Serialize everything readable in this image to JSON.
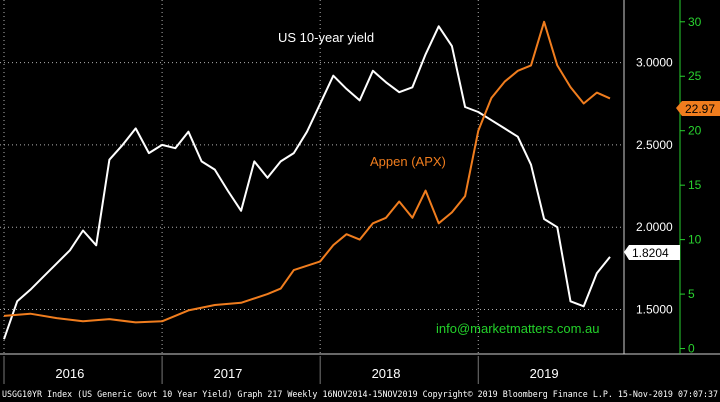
{
  "chart_data": {
    "type": "line",
    "title": "",
    "annotations": {
      "us10_label": "US 10-year yield",
      "appen_label": "Appen (APX)",
      "contact": "info@marketmatters.com.au"
    },
    "footer": "USGG10YR Index (US Generic Govt 10 Year Yield) Graph 217  Weekly 16NOV2014-15NOV2019  Copyright© 2019 Bloomberg Finance L.P.  15-Nov-2019 07:07:37",
    "x_labels": [
      "2016",
      "2017",
      "2018",
      "2019"
    ],
    "x_range": [
      "2016-01",
      "2019-11"
    ],
    "left_axis": {
      "ticks": [
        "1.5000",
        "2.0000",
        "2.5000",
        "3.0000"
      ],
      "range": [
        1.23,
        3.38
      ],
      "last_value_badge": "1.8204"
    },
    "right_axis": {
      "ticks": [
        "0",
        "5",
        "10",
        "15",
        "20",
        "25",
        "30"
      ],
      "range": [
        -0.5,
        32.0
      ],
      "last_value_badge": "22.97"
    },
    "grid": true,
    "series": [
      {
        "name": "US 10-year yield",
        "axis": "left",
        "color": "#ffffff",
        "values": [
          [
            "2016-01",
            1.32
          ],
          [
            "2016-02",
            1.55
          ],
          [
            "2016-03",
            1.62
          ],
          [
            "2016-04",
            1.7
          ],
          [
            "2016-05",
            1.78
          ],
          [
            "2016-06",
            1.86
          ],
          [
            "2016-07",
            1.98
          ],
          [
            "2016-08",
            1.89
          ],
          [
            "2016-09",
            2.41
          ],
          [
            "2016-10",
            2.5
          ],
          [
            "2016-11",
            2.6
          ],
          [
            "2016-12",
            2.45
          ],
          [
            "2017-01",
            2.5
          ],
          [
            "2017-02",
            2.48
          ],
          [
            "2017-03",
            2.58
          ],
          [
            "2017-04",
            2.4
          ],
          [
            "2017-05",
            2.35
          ],
          [
            "2017-06",
            2.22
          ],
          [
            "2017-07",
            2.1
          ],
          [
            "2017-08",
            2.4
          ],
          [
            "2017-09",
            2.3
          ],
          [
            "2017-10",
            2.4
          ],
          [
            "2017-11",
            2.45
          ],
          [
            "2017-12",
            2.58
          ],
          [
            "2018-01",
            2.75
          ],
          [
            "2018-02",
            2.92
          ],
          [
            "2018-03",
            2.84
          ],
          [
            "2018-04",
            2.77
          ],
          [
            "2018-05",
            2.95
          ],
          [
            "2018-06",
            2.88
          ],
          [
            "2018-07",
            2.82
          ],
          [
            "2018-08",
            2.85
          ],
          [
            "2018-09",
            3.05
          ],
          [
            "2018-10",
            3.22
          ],
          [
            "2018-11",
            3.1
          ],
          [
            "2018-12",
            2.73
          ],
          [
            "2019-01",
            2.7
          ],
          [
            "2019-02",
            2.65
          ],
          [
            "2019-03",
            2.6
          ],
          [
            "2019-04",
            2.55
          ],
          [
            "2019-05",
            2.38
          ],
          [
            "2019-06",
            2.05
          ],
          [
            "2019-07",
            2.0
          ],
          [
            "2019-08",
            1.55
          ],
          [
            "2019-09",
            1.52
          ],
          [
            "2019-10",
            1.72
          ],
          [
            "2019-11",
            1.82
          ]
        ]
      },
      {
        "name": "Appen (APX)",
        "axis": "right",
        "color": "#f07d1e",
        "values": [
          [
            "2016-01",
            3.0
          ],
          [
            "2016-03",
            3.2
          ],
          [
            "2016-05",
            2.8
          ],
          [
            "2016-07",
            2.5
          ],
          [
            "2016-09",
            2.7
          ],
          [
            "2016-11",
            2.4
          ],
          [
            "2017-01",
            2.5
          ],
          [
            "2017-03",
            3.5
          ],
          [
            "2017-05",
            4.0
          ],
          [
            "2017-07",
            4.2
          ],
          [
            "2017-09",
            5.0
          ],
          [
            "2017-10",
            5.5
          ],
          [
            "2017-11",
            7.2
          ],
          [
            "2018-01",
            8.0
          ],
          [
            "2018-02",
            9.5
          ],
          [
            "2018-03",
            10.5
          ],
          [
            "2018-04",
            10.0
          ],
          [
            "2018-05",
            11.5
          ],
          [
            "2018-06",
            12.0
          ],
          [
            "2018-07",
            13.5
          ],
          [
            "2018-08",
            12.0
          ],
          [
            "2018-09",
            14.5
          ],
          [
            "2018-10",
            11.5
          ],
          [
            "2018-11",
            12.5
          ],
          [
            "2018-12",
            14.0
          ],
          [
            "2019-01",
            20.0
          ],
          [
            "2019-02",
            23.0
          ],
          [
            "2019-03",
            24.5
          ],
          [
            "2019-04",
            25.5
          ],
          [
            "2019-05",
            26.0
          ],
          [
            "2019-06",
            30.0
          ],
          [
            "2019-07",
            26.0
          ],
          [
            "2019-08",
            24.0
          ],
          [
            "2019-09",
            22.5
          ],
          [
            "2019-10",
            23.5
          ],
          [
            "2019-11",
            22.97
          ]
        ]
      }
    ]
  },
  "colors": {
    "background": "#000000",
    "grid": "#b0b0b0",
    "accent_green": "#23d12a",
    "orange": "#f07d1e",
    "white": "#ffffff"
  }
}
